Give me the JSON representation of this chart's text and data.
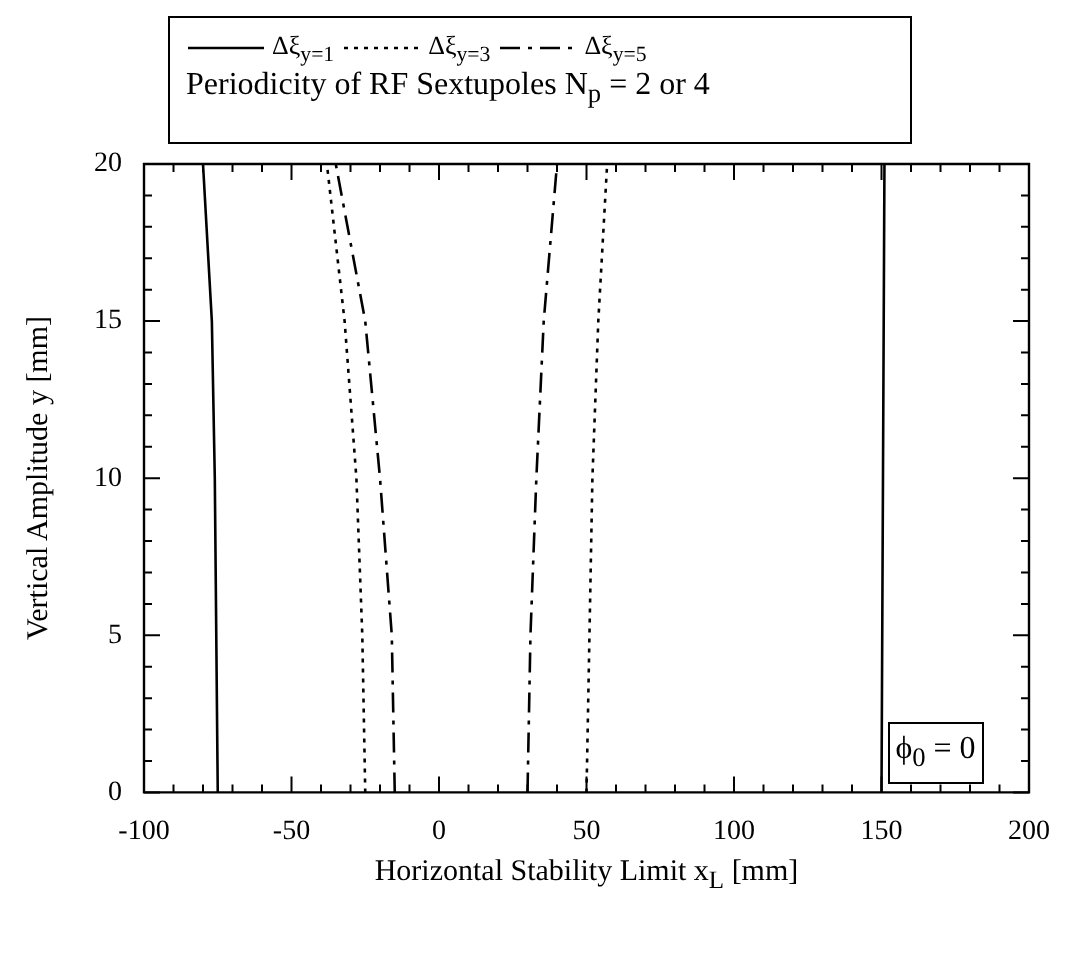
{
  "chart_data": {
    "type": "line",
    "subtitle": "Periodicity of RF Sextupoles N$_{p}$ = 2 or 4",
    "xlabel": "Horizontal Stability Limit x$_{L}$ [mm]",
    "ylabel": "Vertical Amplitude y [mm]",
    "annotations": [
      "ϕ$_{0}$ = 0"
    ],
    "legend": "top",
    "marker": "none",
    "grid": false,
    "xlim": [
      -100,
      200
    ],
    "ylim": [
      0,
      20
    ],
    "xticks": [
      -100,
      {
        "value": -90,
        "label": null
      },
      {
        "value": -80,
        "label": null
      },
      {
        "value": -70,
        "label": null
      },
      {
        "value": -60,
        "label": null
      },
      -50,
      {
        "value": -40,
        "label": null
      },
      {
        "value": -30,
        "label": null
      },
      {
        "value": -20,
        "label": null
      },
      {
        "value": -10,
        "label": null
      },
      0,
      {
        "value": 10,
        "label": null
      },
      {
        "value": 20,
        "label": null
      },
      {
        "value": 30,
        "label": null
      },
      {
        "value": 40,
        "label": null
      },
      50,
      {
        "value": 60,
        "label": null
      },
      {
        "value": 70,
        "label": null
      },
      {
        "value": 80,
        "label": null
      },
      {
        "value": 90,
        "label": null
      },
      100,
      {
        "value": 110,
        "label": null
      },
      {
        "value": 120,
        "label": null
      },
      {
        "value": 130,
        "label": null
      },
      {
        "value": 140,
        "label": null
      },
      150,
      {
        "value": 160,
        "label": null
      },
      {
        "value": 170,
        "label": null
      },
      {
        "value": 180,
        "label": null
      },
      {
        "value": 190,
        "label": null
      },
      200
    ],
    "yticks": [
      0,
      {
        "value": 1,
        "label": null
      },
      {
        "value": 2,
        "label": null
      },
      {
        "value": 3,
        "label": null
      },
      {
        "value": 4,
        "label": null
      },
      5,
      {
        "value": 6,
        "label": null
      },
      {
        "value": 7,
        "label": null
      },
      {
        "value": 8,
        "label": null
      },
      {
        "value": 9,
        "label": null
      },
      10,
      {
        "value": 11,
        "label": null
      },
      {
        "value": 12,
        "label": null
      },
      {
        "value": 13,
        "label": null
      },
      {
        "value": 14,
        "label": null
      },
      15,
      {
        "value": 16,
        "label": null
      },
      {
        "value": 17,
        "label": null
      },
      {
        "value": 18,
        "label": null
      },
      {
        "value": 19,
        "label": null
      },
      20
    ],
    "series": [
      {
        "name": "Δξ$_{y=1}$",
        "color": "#000000",
        "line_style": "solid",
        "x": [
          -75,
          -76,
          -77,
          -80,
          null,
          150,
          151
        ],
        "values": [
          0,
          10,
          15,
          20,
          null,
          0,
          20
        ]
      },
      {
        "name": "Δξ$_{y=3}$",
        "color": "#000000",
        "line_style": "dotted",
        "x": [
          -25,
          -26,
          -28,
          -32,
          -38,
          null,
          50,
          51,
          52,
          54,
          57
        ],
        "values": [
          0,
          5,
          10,
          15,
          20,
          null,
          0,
          5,
          10,
          15,
          20
        ]
      },
      {
        "name": "Δξ$_{y=5}$",
        "color": "#000000",
        "line_style": "dashed",
        "x": [
          -15,
          -16,
          -20,
          -25,
          -35,
          null,
          30,
          31,
          33,
          35.5,
          40
        ],
        "values": [
          0,
          5,
          10,
          15,
          20,
          null,
          0,
          5,
          10,
          15,
          20
        ]
      }
    ]
  }
}
